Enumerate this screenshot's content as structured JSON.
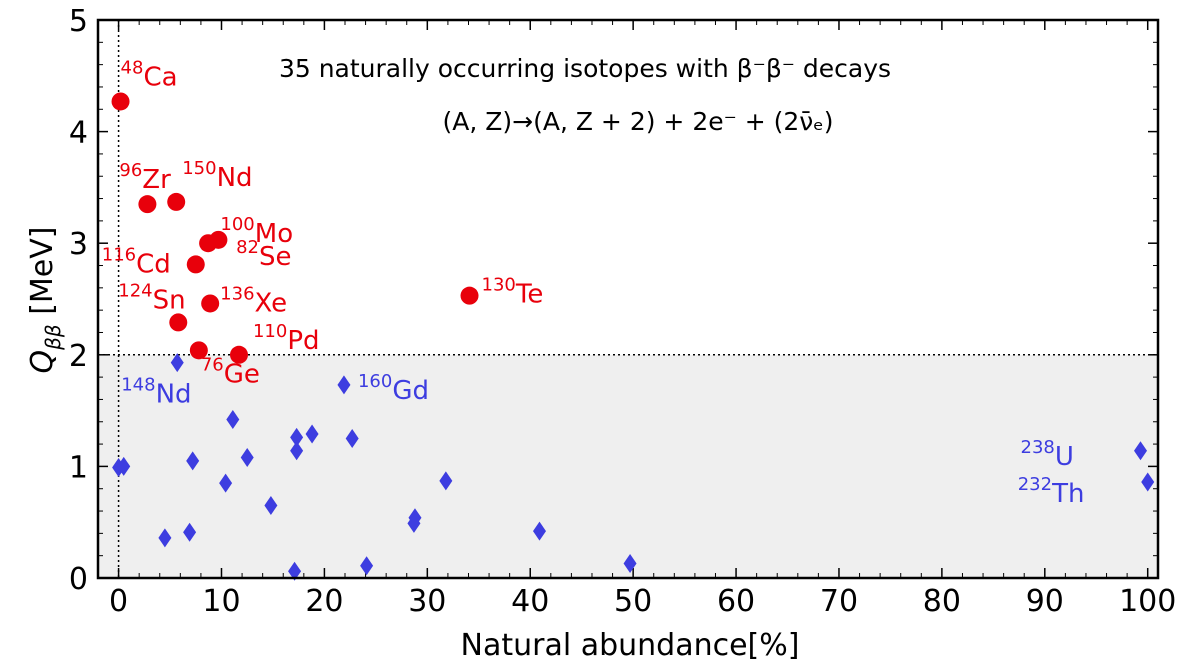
{
  "chart_data": {
    "type": "scatter",
    "xlabel": "Natural abundance[%]",
    "ylabel_main": "Q",
    "ylabel_sub": "ββ",
    "ylabel_unit": " [MeV]",
    "xlim": [
      -2,
      101
    ],
    "ylim": [
      0,
      5
    ],
    "x_ticks": [
      0,
      10,
      20,
      30,
      40,
      50,
      60,
      70,
      80,
      90,
      100
    ],
    "y_ticks": [
      0,
      1,
      2,
      3,
      4,
      5
    ],
    "threshold_y": 2,
    "grid": false,
    "annotations": {
      "line1": "35 naturally occurring isotopes with β⁻β⁻ decays",
      "line2": "(A, Z)→(A, Z + 2) + 2e⁻ + (2ν̄ₑ)"
    },
    "colors": {
      "high_q": "#e8000b",
      "low_q": "#3d3de0",
      "shade": "#efefef"
    },
    "series": [
      {
        "marker": "circle",
        "color": "#e8000b",
        "points": [
          {
            "x": 0.19,
            "y": 4.27,
            "mass": "48",
            "el": "Ca"
          },
          {
            "x": 2.8,
            "y": 3.35,
            "mass": "96",
            "el": "Zr"
          },
          {
            "x": 5.6,
            "y": 3.37,
            "mass": "150",
            "el": "Nd"
          },
          {
            "x": 9.7,
            "y": 3.03,
            "mass": "100",
            "el": "Mo"
          },
          {
            "x": 7.5,
            "y": 2.81,
            "mass": "116",
            "el": "Cd"
          },
          {
            "x": 8.7,
            "y": 3.0,
            "mass": "82",
            "el": "Se"
          },
          {
            "x": 34.1,
            "y": 2.53,
            "mass": "130",
            "el": "Te"
          },
          {
            "x": 5.8,
            "y": 2.29,
            "mass": "124",
            "el": "Sn"
          },
          {
            "x": 8.9,
            "y": 2.46,
            "mass": "136",
            "el": "Xe"
          },
          {
            "x": 11.7,
            "y": 2.0,
            "mass": "110",
            "el": "Pd"
          },
          {
            "x": 7.8,
            "y": 2.04,
            "mass": "76",
            "el": "Ge"
          }
        ]
      },
      {
        "marker": "diamond",
        "color": "#3d3de0",
        "points": [
          {
            "x": 5.7,
            "y": 1.93,
            "mass": "148",
            "el": "Nd"
          },
          {
            "x": 21.9,
            "y": 1.73,
            "mass": "160",
            "el": "Gd"
          },
          {
            "x": 99.3,
            "y": 1.14,
            "mass": "238",
            "el": "U"
          },
          {
            "x": 100,
            "y": 0.86,
            "mass": "232",
            "el": "Th"
          },
          {
            "x": 0.0,
            "y": 0.99
          },
          {
            "x": 0.5,
            "y": 1.0
          },
          {
            "x": 4.5,
            "y": 0.36
          },
          {
            "x": 6.9,
            "y": 0.41
          },
          {
            "x": 7.2,
            "y": 1.05
          },
          {
            "x": 10.4,
            "y": 0.85
          },
          {
            "x": 11.1,
            "y": 1.42
          },
          {
            "x": 12.5,
            "y": 1.08
          },
          {
            "x": 14.8,
            "y": 0.65
          },
          {
            "x": 17.1,
            "y": 0.06
          },
          {
            "x": 17.3,
            "y": 1.14
          },
          {
            "x": 17.3,
            "y": 1.26
          },
          {
            "x": 18.8,
            "y": 1.29
          },
          {
            "x": 22.7,
            "y": 1.25
          },
          {
            "x": 24.1,
            "y": 0.11
          },
          {
            "x": 28.7,
            "y": 0.49
          },
          {
            "x": 28.8,
            "y": 0.54
          },
          {
            "x": 31.8,
            "y": 0.87
          },
          {
            "x": 40.9,
            "y": 0.42
          },
          {
            "x": 49.7,
            "y": 0.13
          }
        ]
      }
    ]
  }
}
